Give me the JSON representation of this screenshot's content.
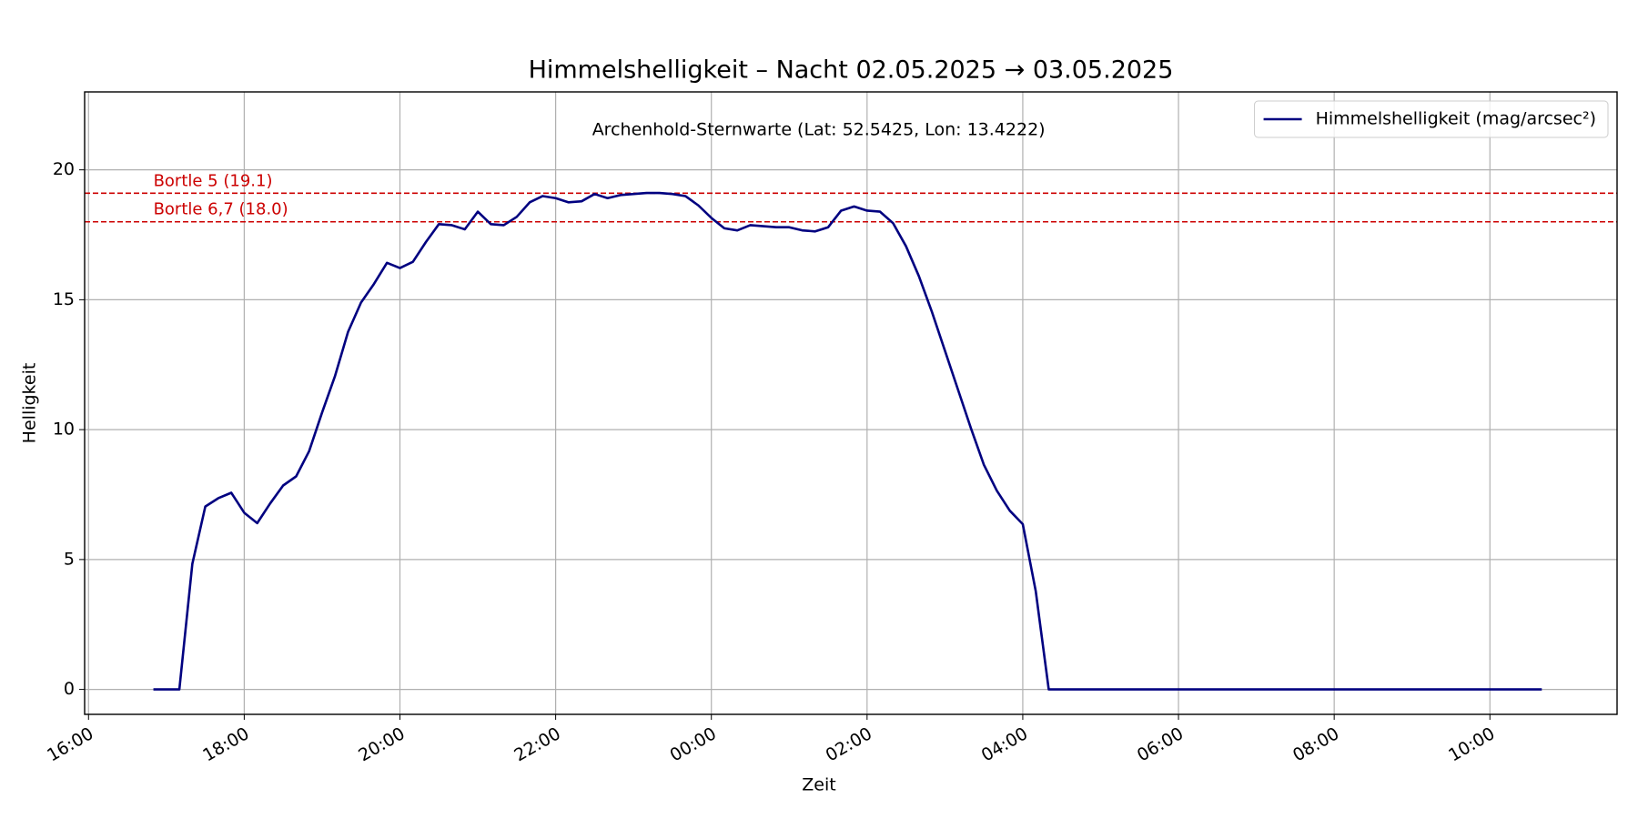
{
  "chart_data": {
    "type": "line",
    "title": "Himmelshelligkeit – Nacht 02.05.2025 → 03.05.2025",
    "subtitle": "Archenhold-Sternwarte (Lat: 52.5425, Lon: 13.4222)",
    "x_label": "Zeit",
    "y_label": "Helligkeit",
    "x": [
      "16:50",
      "17:00",
      "17:10",
      "17:20",
      "17:30",
      "17:40",
      "17:50",
      "18:00",
      "18:10",
      "18:20",
      "18:30",
      "18:40",
      "18:50",
      "19:00",
      "19:10",
      "19:20",
      "19:30",
      "19:40",
      "19:50",
      "20:00",
      "20:10",
      "20:20",
      "20:30",
      "20:40",
      "20:50",
      "21:00",
      "21:10",
      "21:20",
      "21:30",
      "21:40",
      "21:50",
      "22:00",
      "22:10",
      "22:20",
      "22:30",
      "22:40",
      "22:50",
      "23:00",
      "23:10",
      "23:20",
      "23:30",
      "23:40",
      "23:50",
      "00:00",
      "00:10",
      "00:20",
      "00:30",
      "00:40",
      "00:50",
      "01:00",
      "01:10",
      "01:20",
      "01:30",
      "01:40",
      "01:50",
      "02:00",
      "02:10",
      "02:20",
      "02:30",
      "02:40",
      "02:50",
      "03:00",
      "03:10",
      "03:20",
      "03:30",
      "03:40",
      "03:50",
      "04:00",
      "04:10",
      "04:20",
      "04:30",
      "04:40",
      "04:50",
      "05:00",
      "05:10",
      "05:20",
      "05:30",
      "05:40",
      "05:50",
      "06:00",
      "06:10",
      "06:20",
      "06:30",
      "06:40",
      "06:50",
      "07:00",
      "07:10",
      "07:20",
      "07:30",
      "07:40",
      "07:50",
      "08:00",
      "08:10",
      "08:20",
      "08:30",
      "08:40",
      "08:50",
      "09:00",
      "09:10",
      "09:20",
      "09:30",
      "09:40",
      "09:50",
      "10:00",
      "10:10",
      "10:20",
      "10:30",
      "10:40"
    ],
    "series": [
      {
        "name": "Himmelshelligkeit (mag/arcsec²)",
        "color": "#000080",
        "values": [
          0,
          0,
          0,
          4.83,
          7.04,
          7.36,
          7.57,
          6.8,
          6.4,
          7.16,
          7.85,
          8.2,
          9.17,
          10.66,
          12.07,
          13.76,
          14.89,
          15.61,
          16.42,
          16.22,
          16.46,
          17.22,
          17.91,
          17.87,
          17.71,
          18.39,
          17.91,
          17.87,
          18.19,
          18.75,
          18.99,
          18.91,
          18.75,
          18.79,
          19.07,
          18.91,
          19.03,
          19.07,
          19.11,
          19.11,
          19.07,
          18.99,
          18.63,
          18.15,
          17.75,
          17.67,
          17.87,
          17.83,
          17.79,
          17.79,
          17.67,
          17.63,
          17.79,
          18.43,
          18.59,
          18.43,
          18.39,
          17.95,
          17.06,
          15.9,
          14.53,
          13.04,
          11.55,
          10.06,
          8.65,
          7.65,
          6.88,
          6.36,
          3.78,
          0,
          0,
          0,
          0,
          0,
          0,
          0,
          0,
          0,
          0,
          0,
          0,
          0,
          0,
          0,
          0,
          0,
          0,
          0,
          0,
          0,
          0,
          0,
          0,
          0,
          0,
          0,
          0,
          0,
          0,
          0,
          0,
          0,
          0,
          0,
          0,
          0,
          0,
          0
        ]
      }
    ],
    "hlines": [
      {
        "value": 19.1,
        "label": "Bortle 5 (19.1)",
        "color": "#cc0000"
      },
      {
        "value": 18.0,
        "label": "Bortle 6,7 (18.0)",
        "color": "#cc0000"
      }
    ],
    "xlim": [
      "15:57",
      "11:38"
    ],
    "xticks": [
      "16:00",
      "18:00",
      "20:00",
      "22:00",
      "00:00",
      "02:00",
      "04:00",
      "06:00",
      "08:00",
      "10:00"
    ],
    "ylim": [
      -0.96,
      23.0
    ],
    "yticks": [
      0,
      5,
      10,
      15,
      20
    ],
    "grid": true,
    "legend": "upper right"
  }
}
